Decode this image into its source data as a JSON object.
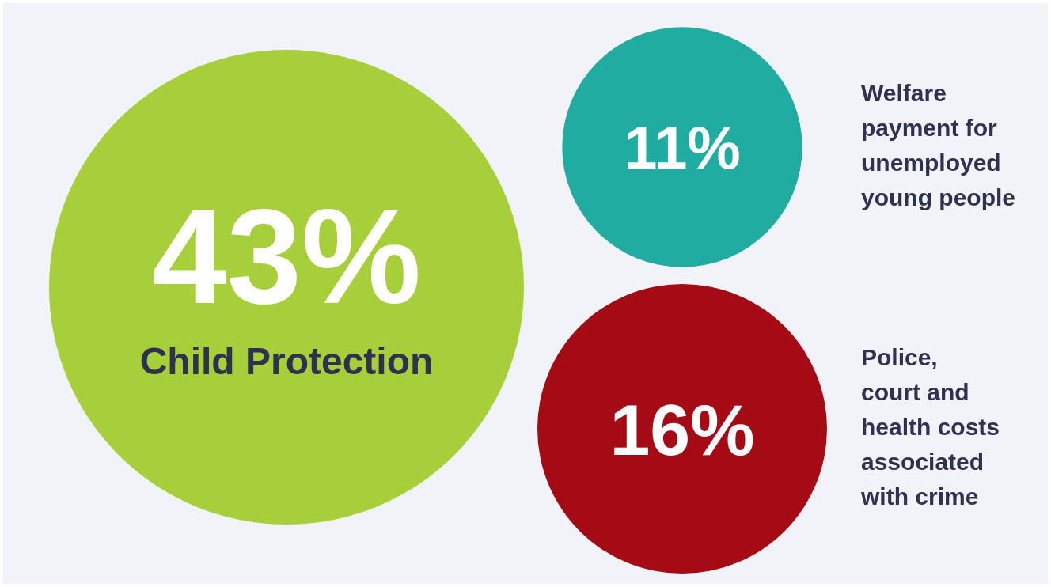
{
  "chart_data": {
    "type": "other",
    "categories": [
      "Child Protection",
      "Welfare\npayment for\nunemployed\nyoung people",
      "Police,\ncourt and\nhealth costs\nassociated\nwith crime"
    ],
    "values": [
      43,
      11,
      16
    ],
    "colors": [
      "#a7cf3a",
      "#20aca0",
      "#a50b14"
    ],
    "value_labels": [
      "43%",
      "11%",
      "16%"
    ]
  }
}
